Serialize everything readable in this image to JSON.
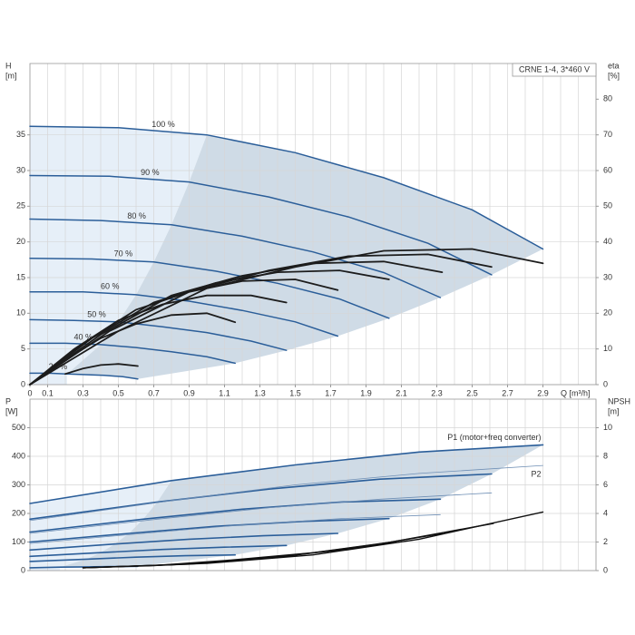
{
  "chart_data": [
    {
      "type": "line",
      "title": "CRNE 1-4, 3*460 V",
      "xlabel": "Q [m³/h]",
      "ylabel": [
        "H",
        "[m]"
      ],
      "y2label": [
        "eta",
        "[%]"
      ],
      "xlim": [
        0,
        3.2
      ],
      "ylim": [
        0,
        45
      ],
      "y2lim": [
        0,
        90
      ],
      "xticks": [
        0,
        0.1,
        0.3,
        0.5,
        0.7,
        0.9,
        1.1,
        1.3,
        1.5,
        1.7,
        1.9,
        2.1,
        2.3,
        2.5,
        2.7,
        2.9
      ],
      "xgrid": [
        0,
        0.1,
        0.2,
        0.3,
        0.4,
        0.5,
        0.6,
        0.7,
        0.8,
        0.9,
        1.0,
        1.1,
        1.2,
        1.3,
        1.4,
        1.5,
        1.6,
        1.7,
        1.8,
        1.9,
        2.0,
        2.1,
        2.2,
        2.3,
        2.4,
        2.5,
        2.6,
        2.7,
        2.8,
        2.9,
        3.0,
        3.1,
        3.2
      ],
      "yticks": [
        0,
        5,
        10,
        15,
        20,
        25,
        30,
        35
      ],
      "y2ticks": [
        0,
        10,
        20,
        30,
        40,
        50,
        60,
        70,
        80
      ],
      "grid": true,
      "shade_role": "head",
      "series": [
        {
          "name": "100 %",
          "role": "head",
          "color": "#2b5e99",
          "x": [
            0,
            0.5,
            1.0,
            1.5,
            2.0,
            2.5,
            2.9
          ],
          "values": [
            36.2,
            36.0,
            35.0,
            32.5,
            29.0,
            24.5,
            19.0
          ]
        },
        {
          "name": "90 %",
          "role": "head",
          "color": "#2b5e99",
          "x": [
            0,
            0.45,
            0.9,
            1.35,
            1.8,
            2.25,
            2.61
          ],
          "values": [
            29.3,
            29.2,
            28.4,
            26.3,
            23.5,
            19.8,
            15.4
          ]
        },
        {
          "name": "80 %",
          "role": "head",
          "color": "#2b5e99",
          "x": [
            0,
            0.4,
            0.8,
            1.2,
            1.6,
            2.0,
            2.32
          ],
          "values": [
            23.2,
            23.0,
            22.4,
            20.8,
            18.6,
            15.7,
            12.2
          ]
        },
        {
          "name": "70 %",
          "role": "head",
          "color": "#2b5e99",
          "x": [
            0,
            0.35,
            0.7,
            1.05,
            1.4,
            1.75,
            2.03
          ],
          "values": [
            17.7,
            17.6,
            17.2,
            15.9,
            14.2,
            12.0,
            9.3
          ]
        },
        {
          "name": "60 %",
          "role": "head",
          "color": "#2b5e99",
          "x": [
            0,
            0.3,
            0.6,
            0.9,
            1.2,
            1.5,
            1.74
          ],
          "values": [
            13.0,
            13.0,
            12.6,
            11.7,
            10.4,
            8.8,
            6.8
          ]
        },
        {
          "name": "50 %",
          "role": "head",
          "color": "#2b5e99",
          "x": [
            0,
            0.25,
            0.5,
            0.75,
            1.0,
            1.25,
            1.45
          ],
          "values": [
            9.1,
            9.0,
            8.8,
            8.1,
            7.3,
            6.1,
            4.8
          ]
        },
        {
          "name": "40 %",
          "role": "head",
          "color": "#2b5e99",
          "x": [
            0,
            0.2,
            0.4,
            0.6,
            0.8,
            1.0,
            1.16
          ],
          "values": [
            5.8,
            5.8,
            5.6,
            5.2,
            4.6,
            3.9,
            3.0
          ]
        },
        {
          "name": "21 %",
          "role": "head",
          "color": "#2b5e99",
          "x": [
            0,
            0.105,
            0.21,
            0.315,
            0.42,
            0.525,
            0.61
          ],
          "values": [
            1.6,
            1.6,
            1.5,
            1.4,
            1.3,
            1.1,
            0.8
          ]
        },
        {
          "role": "efficiency",
          "axis": "y2",
          "color": "#1c1c1c",
          "x": [
            0,
            0.5,
            1.0,
            1.5,
            2.0,
            2.5,
            2.9
          ],
          "values": [
            0,
            15,
            27,
            33,
            37.5,
            38,
            34
          ]
        },
        {
          "role": "efficiency",
          "axis": "y2",
          "color": "#1c1c1c",
          "x": [
            0,
            0.45,
            0.9,
            1.35,
            1.8,
            2.25,
            2.61
          ],
          "values": [
            0,
            15,
            26,
            32,
            36,
            36.5,
            33
          ]
        },
        {
          "role": "efficiency",
          "axis": "y2",
          "color": "#1c1c1c",
          "x": [
            0,
            0.4,
            0.8,
            1.2,
            1.6,
            2.0,
            2.33
          ],
          "values": [
            0,
            14,
            25,
            30.5,
            34,
            34.5,
            31.5
          ]
        },
        {
          "role": "efficiency",
          "axis": "y2",
          "color": "#1c1c1c",
          "x": [
            0,
            0.35,
            0.7,
            1.05,
            1.4,
            1.75,
            2.03
          ],
          "values": [
            0,
            13,
            23,
            28.5,
            31.5,
            32,
            29.5
          ]
        },
        {
          "role": "efficiency",
          "axis": "y2",
          "color": "#1c1c1c",
          "x": [
            0,
            0.3,
            0.6,
            0.9,
            1.2,
            1.5,
            1.74
          ],
          "values": [
            0,
            11.5,
            21,
            26,
            29,
            29.5,
            26.5
          ]
        },
        {
          "role": "efficiency",
          "axis": "y2",
          "color": "#1c1c1c",
          "x": [
            0,
            0.25,
            0.5,
            0.75,
            1.0,
            1.25,
            1.45
          ],
          "values": [
            0,
            10,
            18,
            22.5,
            25,
            25,
            23
          ]
        },
        {
          "role": "efficiency",
          "axis": "y2",
          "color": "#1c1c1c",
          "x": [
            0,
            0.2,
            0.4,
            0.6,
            0.8,
            1.0,
            1.16
          ],
          "values": [
            0,
            7,
            13,
            17,
            19.5,
            20,
            17.5
          ]
        },
        {
          "role": "efficiency",
          "axis": "y2",
          "color": "#1c1c1c",
          "x": [
            0.2,
            0.3,
            0.4,
            0.5,
            0.61
          ],
          "values": [
            3,
            4.5,
            5.5,
            5.8,
            5.2
          ]
        }
      ]
    },
    {
      "type": "line",
      "ylabel": [
        "P",
        "[W]"
      ],
      "y2label": [
        "NPSH",
        "[m]"
      ],
      "xlim": [
        0,
        3.2
      ],
      "ylim": [
        0,
        600
      ],
      "y2lim": [
        0,
        12
      ],
      "xgrid": [
        0,
        0.1,
        0.2,
        0.3,
        0.4,
        0.5,
        0.6,
        0.7,
        0.8,
        0.9,
        1.0,
        1.1,
        1.2,
        1.3,
        1.4,
        1.5,
        1.6,
        1.7,
        1.8,
        1.9,
        2.0,
        2.1,
        2.2,
        2.3,
        2.4,
        2.5,
        2.6,
        2.7,
        2.8,
        2.9,
        3.0,
        3.1,
        3.2
      ],
      "yticks": [
        0,
        100,
        200,
        300,
        400,
        500
      ],
      "y2ticks": [
        0,
        2,
        4,
        6,
        8,
        10
      ],
      "grid": true,
      "shade_role": "p1",
      "series": [
        {
          "name": "P1 (motor+freq converter)",
          "role": "p1",
          "color": "#2b5e99",
          "x": [
            0,
            0.8,
            1.5,
            2.2,
            2.9
          ],
          "values": [
            235,
            315,
            370,
            415,
            440
          ]
        },
        {
          "role": "p1",
          "color": "#2b5e99",
          "x": [
            0,
            0.72,
            1.35,
            1.98,
            2.61
          ],
          "values": [
            180,
            240,
            285,
            320,
            338
          ]
        },
        {
          "role": "p1",
          "color": "#2b5e99",
          "x": [
            0,
            0.64,
            1.2,
            1.76,
            2.32
          ],
          "values": [
            135,
            180,
            215,
            240,
            250
          ]
        },
        {
          "role": "p1",
          "color": "#2b5e99",
          "x": [
            0,
            0.56,
            1.05,
            1.54,
            2.03
          ],
          "values": [
            100,
            130,
            155,
            172,
            182
          ]
        },
        {
          "role": "p1",
          "color": "#2b5e99",
          "x": [
            0,
            0.48,
            0.9,
            1.32,
            1.74
          ],
          "values": [
            72,
            93,
            110,
            122,
            130
          ]
        },
        {
          "role": "p1",
          "color": "#2b5e99",
          "x": [
            0,
            0.4,
            0.75,
            1.1,
            1.45
          ],
          "values": [
            50,
            63,
            74,
            82,
            88
          ]
        },
        {
          "role": "p1",
          "color": "#2b5e99",
          "x": [
            0,
            0.32,
            0.6,
            0.88,
            1.16
          ],
          "values": [
            32,
            40,
            47,
            52,
            55
          ]
        },
        {
          "role": "p1",
          "color": "#2b5e99",
          "x": [
            0,
            0.17,
            0.32,
            0.46,
            0.61
          ],
          "values": [
            10,
            12,
            13,
            14,
            15
          ]
        },
        {
          "name": "P2",
          "role": "p2",
          "color": "#6f8fb5",
          "x": [
            0,
            0.8,
            1.5,
            2.2,
            2.9
          ],
          "values": [
            175,
            245,
            300,
            340,
            368
          ]
        },
        {
          "role": "p2",
          "color": "#6f8fb5",
          "x": [
            0,
            0.72,
            1.35,
            1.98,
            2.61
          ],
          "values": [
            130,
            180,
            220,
            250,
            272
          ]
        },
        {
          "role": "p2",
          "color": "#6f8fb5",
          "x": [
            0,
            0.64,
            1.2,
            1.76,
            2.32
          ],
          "values": [
            95,
            130,
            160,
            182,
            196
          ]
        },
        {
          "role": "npsh",
          "axis": "y2",
          "color": "#111111",
          "x": [
            0.3,
            1.0,
            1.6,
            2.2,
            2.9
          ],
          "values": [
            0.2,
            0.5,
            1.1,
            2.2,
            4.1
          ]
        },
        {
          "role": "npsh",
          "axis": "y2",
          "color": "#111111",
          "x": [
            0.3,
            0.9,
            1.45,
            2.0,
            2.62
          ],
          "values": [
            0.2,
            0.45,
            1.0,
            1.9,
            3.3
          ]
        },
        {
          "role": "npsh",
          "axis": "y2",
          "color": "#111111",
          "x": [
            0.3,
            0.8,
            1.3,
            1.8,
            2.33
          ],
          "values": [
            0.2,
            0.4,
            0.85,
            1.5,
            2.6
          ]
        },
        {
          "role": "npsh",
          "axis": "y2",
          "color": "#111111",
          "x": [
            0.3,
            0.7,
            1.1,
            1.6,
            2.05
          ],
          "values": [
            0.2,
            0.35,
            0.7,
            1.25,
            2.0
          ]
        }
      ]
    }
  ]
}
